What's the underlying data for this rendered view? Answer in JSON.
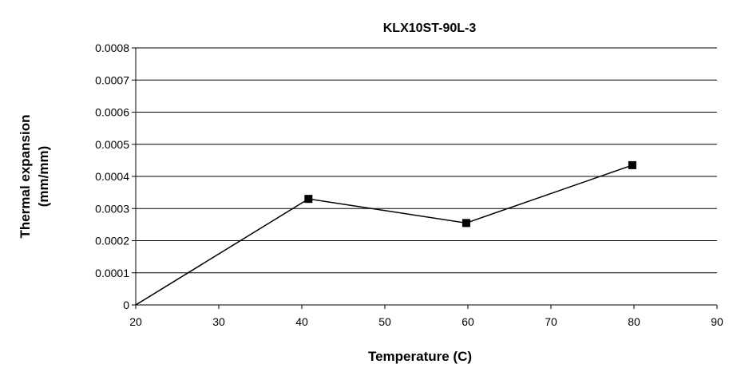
{
  "chart_data": {
    "type": "line",
    "title": "KLX10ST-90L-3",
    "xlabel": "Temperature (C)",
    "ylabel_lines": [
      "Thermal expansion",
      "(mm/mm)"
    ],
    "xlim": [
      20,
      90
    ],
    "ylim": [
      0,
      0.0008
    ],
    "x_ticks": [
      "20",
      "30",
      "40",
      "50",
      "60",
      "70",
      "80",
      "90"
    ],
    "y_ticks": [
      "0",
      "0.0001",
      "0.0002",
      "0.0003",
      "0.0004",
      "0.0005",
      "0.0006",
      "0.0007",
      "0.0008"
    ],
    "grid": "horizontal",
    "legend": "none",
    "series": [
      {
        "x": [
          20,
          40.8,
          59.8,
          79.8
        ],
        "y": [
          0,
          0.00033,
          0.000255,
          0.000435
        ],
        "line_color": "#000000",
        "marker": "square",
        "marker_color": "#000000",
        "first_point_marker": false
      }
    ]
  }
}
